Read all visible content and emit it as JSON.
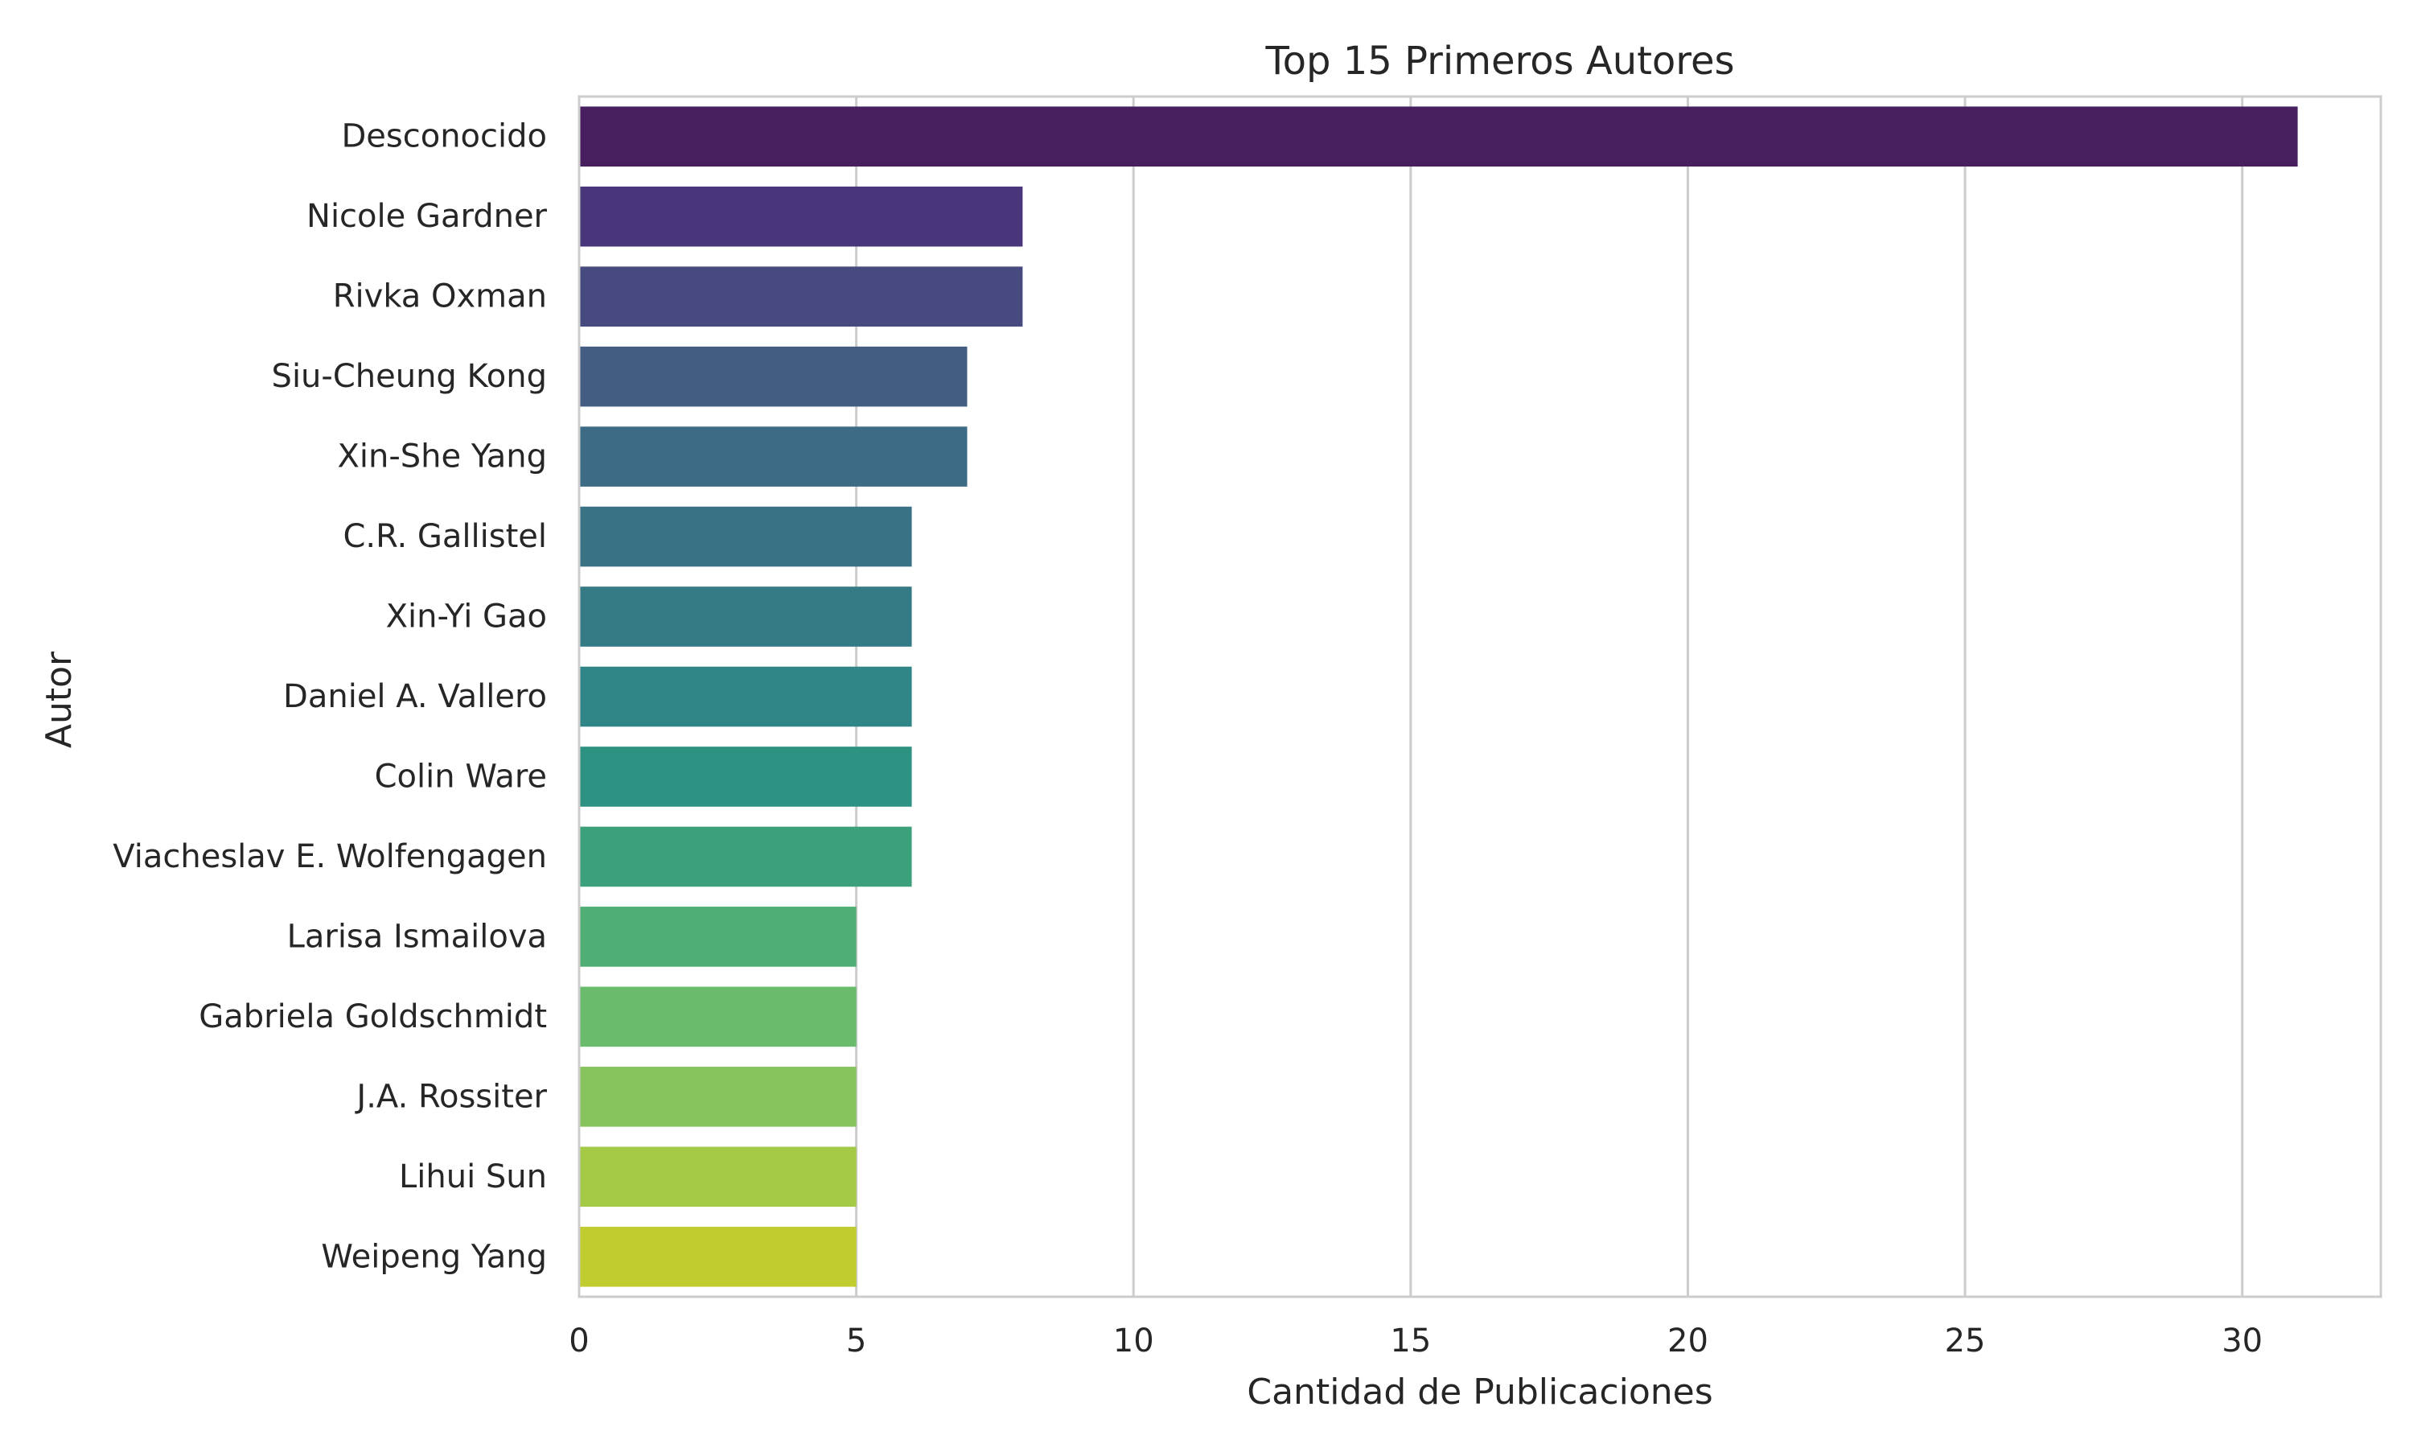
{
  "chart_data": {
    "type": "bar",
    "orientation": "horizontal",
    "title": "Top 15 Primeros Autores",
    "xlabel": "Cantidad de Publicaciones",
    "ylabel": "Autor",
    "xlim": [
      0,
      32.5
    ],
    "xticks": [
      0,
      5,
      10,
      15,
      20,
      25,
      30
    ],
    "grid": "vertical",
    "legend": "none",
    "palette": "viridis",
    "categories": [
      "Desconocido",
      "Nicole Gardner",
      "Rivka Oxman",
      "Siu-Cheung Kong",
      "Xin-She Yang",
      "C.R. Gallistel",
      "Xin-Yi Gao",
      "Daniel A. Vallero",
      "Colin Ware",
      "Viacheslav E. Wolfengagen",
      "Larisa Ismailova",
      "Gabriela Goldschmidt",
      "J.A. Rossiter",
      "Lihui Sun",
      "Weipeng Yang"
    ],
    "values": [
      31,
      8,
      8,
      7,
      7,
      6,
      6,
      6,
      6,
      6,
      5,
      5,
      5,
      5,
      5
    ],
    "colors": [
      "#481f5e",
      "#48357a",
      "#464a7f",
      "#425c82",
      "#3d6b85",
      "#3a7285",
      "#357b85",
      "#308686",
      "#2e9282",
      "#3ca17a",
      "#4fae73",
      "#6abb6c",
      "#87c45d",
      "#a4c944",
      "#c1cc2f"
    ]
  }
}
